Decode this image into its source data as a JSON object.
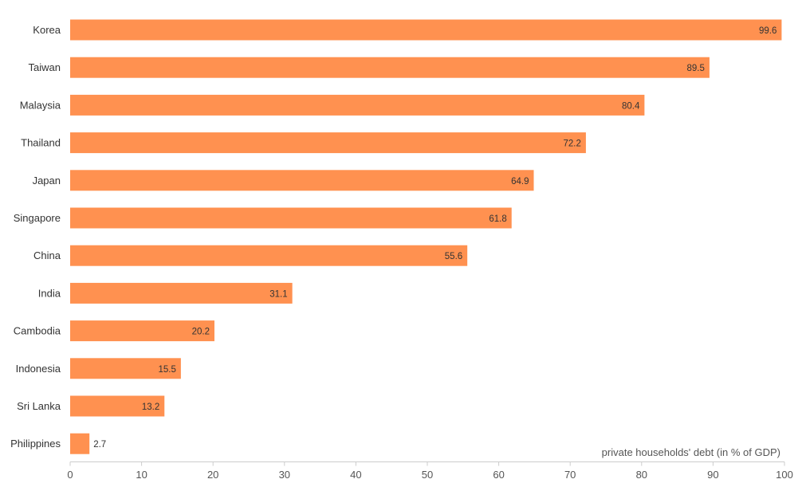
{
  "chart_data": {
    "type": "bar",
    "orientation": "horizontal",
    "categories": [
      "Korea",
      "Taiwan",
      "Malaysia",
      "Thailand",
      "Japan",
      "Singapore",
      "China",
      "India",
      "Cambodia",
      "Indonesia",
      "Sri Lanka",
      "Philippines"
    ],
    "values": [
      99.6,
      89.5,
      80.4,
      72.2,
      64.9,
      61.8,
      55.6,
      31.1,
      20.2,
      15.5,
      13.2,
      2.7
    ],
    "value_labels": [
      "99.6",
      "89.5",
      "80.4",
      "72.2",
      "64.9",
      "61.8",
      "55.6",
      "31.1",
      "20.2",
      "15.5",
      "13.2",
      "2.7"
    ],
    "xlabel": "private households' debt (in % of GDP)",
    "ylabel": "",
    "xlim": [
      0,
      100
    ],
    "x_ticks": [
      "0",
      "10",
      "20",
      "30",
      "40",
      "50",
      "60",
      "70",
      "80",
      "90",
      "100"
    ],
    "grid": false,
    "bar_color": "#ff9150",
    "axis_color": "#cccccc"
  }
}
